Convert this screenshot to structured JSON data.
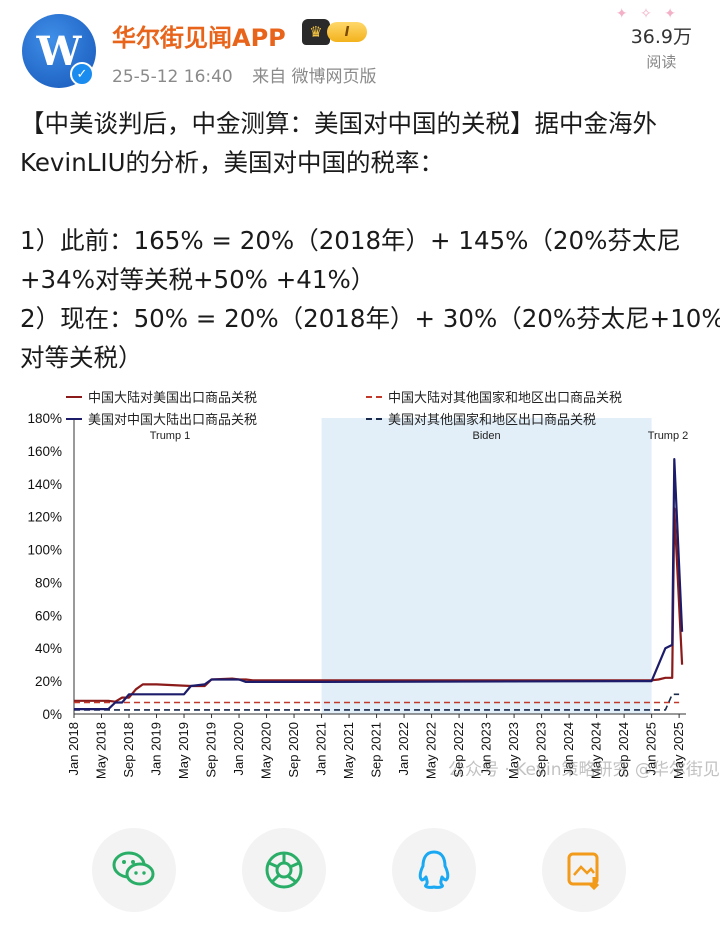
{
  "header": {
    "account_name": "华尔街见闻APP",
    "vip_level": "I",
    "timestamp": "25-5-12 16:40",
    "source": "来自 微博网页版",
    "view_count": "36.9万",
    "view_label": "阅读",
    "avatar_letter": "W"
  },
  "post": {
    "lines": [
      "【中美谈判后，中金测算：美国对中国的关税】据中金海外",
      "KevinLIU的分析，美国对中国的税率：",
      "",
      "1）此前：165% = 20%（2018年）+ 145%（20%芬太尼",
      "+34%对等关税+50% +41%）",
      "2）现在：50% = 20%（2018年）+ 30%（20%芬太尼+10%",
      "对等关税）"
    ]
  },
  "chart_data": {
    "type": "line",
    "title": "",
    "xlabel": "",
    "ylabel": "",
    "ylim": [
      0,
      180
    ],
    "y_ticks": [
      "0%",
      "20%",
      "40%",
      "60%",
      "80%",
      "100%",
      "120%",
      "140%",
      "160%",
      "180%"
    ],
    "x_ticks": [
      "Jan 2018",
      "May 2018",
      "Sep 2018",
      "Jan 2019",
      "May 2019",
      "Sep 2019",
      "Jan 2020",
      "May 2020",
      "Sep 2020",
      "Jan 2021",
      "May 2021",
      "Sep 2021",
      "Jan 2022",
      "May 2022",
      "Sep 2022",
      "Jan 2023",
      "May 2023",
      "Sep 2023",
      "Jan 2024",
      "May 2024",
      "Sep 2024",
      "Jan 2025",
      "May 2025"
    ],
    "x_range": [
      "2018-01",
      "2025-06"
    ],
    "grid": false,
    "legend_placement": "top",
    "periods": [
      {
        "label": "Trump 1",
        "start": "2018-01",
        "end": "2021-01",
        "shaded": false
      },
      {
        "label": "Biden",
        "start": "2021-01",
        "end": "2025-01",
        "shaded": true
      },
      {
        "label": "Trump 2",
        "start": "2025-01",
        "end": "2025-06",
        "shaded": false
      }
    ],
    "series": [
      {
        "name": "中国大陆对美国出口商品关税",
        "color": "#8b1a1a",
        "dash": false,
        "points": [
          [
            "2018-01",
            8
          ],
          [
            "2018-06",
            8
          ],
          [
            "2018-07",
            7.5
          ],
          [
            "2018-08",
            10
          ],
          [
            "2018-09",
            10
          ],
          [
            "2018-10",
            15
          ],
          [
            "2018-11",
            18
          ],
          [
            "2019-01",
            18
          ],
          [
            "2019-06",
            17
          ],
          [
            "2019-08",
            17
          ],
          [
            "2019-09",
            21
          ],
          [
            "2019-12",
            21.5
          ],
          [
            "2020-01",
            21
          ],
          [
            "2020-02",
            21
          ],
          [
            "2020-03",
            20.5
          ],
          [
            "2021-01",
            20.5
          ],
          [
            "2025-01",
            20.5
          ],
          [
            "2025-02",
            21
          ],
          [
            "2025-03",
            22
          ],
          [
            "2025-04",
            22
          ],
          [
            "2025-04-10",
            125
          ],
          [
            "2025-05-14",
            30
          ]
        ]
      },
      {
        "name": "美国对中国大陆出口商品关税",
        "color": "#1c1c6b",
        "dash": false,
        "points": [
          [
            "2018-01",
            3
          ],
          [
            "2018-06",
            3
          ],
          [
            "2018-07",
            7
          ],
          [
            "2018-08",
            7
          ],
          [
            "2018-09",
            12
          ],
          [
            "2018-12",
            12
          ],
          [
            "2019-01",
            12
          ],
          [
            "2019-05",
            12
          ],
          [
            "2019-06",
            17
          ],
          [
            "2019-08",
            18
          ],
          [
            "2019-09",
            21
          ],
          [
            "2020-01",
            21
          ],
          [
            "2020-02",
            19.5
          ],
          [
            "2021-01",
            19.5
          ],
          [
            "2025-01",
            20
          ],
          [
            "2025-02",
            30
          ],
          [
            "2025-03",
            40
          ],
          [
            "2025-04",
            42
          ],
          [
            "2025-04-10",
            155
          ],
          [
            "2025-05-14",
            50
          ]
        ]
      },
      {
        "name": "中国大陆对其他国家和地区出口商品关税",
        "color": "#c0392b",
        "dash": true,
        "points": [
          [
            "2018-01",
            7
          ],
          [
            "2025-04",
            7
          ],
          [
            "2025-05",
            7
          ]
        ]
      },
      {
        "name": "美国对其他国家和地区出口商品关税",
        "color": "#1a2a4a",
        "dash": true,
        "points": [
          [
            "2018-01",
            2.5
          ],
          [
            "2025-03",
            2.5
          ],
          [
            "2025-04",
            12
          ],
          [
            "2025-05",
            12
          ]
        ]
      }
    ]
  },
  "watermark": "公众号 · Kevin策略研究 @华尔街见闻APP",
  "actions": [
    {
      "name": "wechat-share-button",
      "icon": "wechat-icon",
      "color": "#2aae67"
    },
    {
      "name": "moments-share-button",
      "icon": "moments-icon",
      "color": "#2aae67"
    },
    {
      "name": "qq-share-button",
      "icon": "qq-icon",
      "color": "#1aa8f2"
    },
    {
      "name": "save-image-button",
      "icon": "save-image-icon",
      "color": "#f29a1a"
    }
  ]
}
